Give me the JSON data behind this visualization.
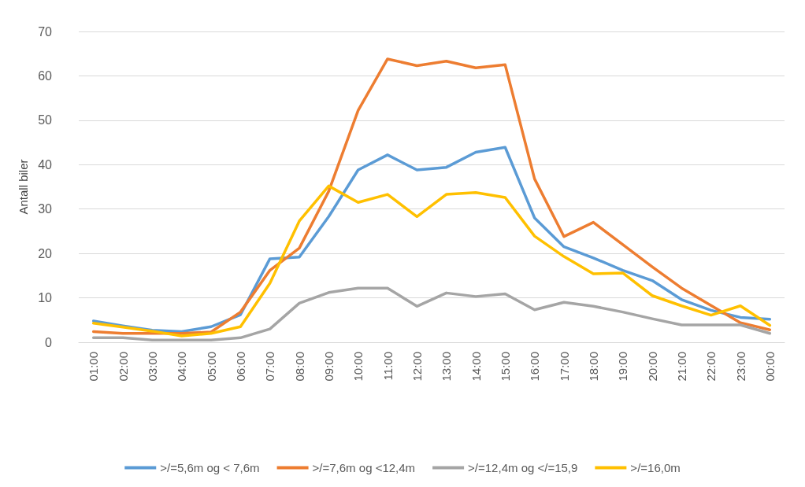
{
  "chart_data": {
    "type": "line",
    "ylabel": "Antall biler",
    "categories": [
      "01:00",
      "02:00",
      "03:00",
      "04:00",
      "05:00",
      "06:00",
      "07:00",
      "08:00",
      "09:00",
      "10:00",
      "11:00",
      "12:00",
      "13:00",
      "14:00",
      "15:00",
      "16:00",
      "17:00",
      "18:00",
      "19:00",
      "20:00",
      "21:00",
      "22:00",
      "23:00",
      "00:00"
    ],
    "series": [
      {
        "name": ">/=5,6m og < 7,6m",
        "color": "#5b9bd5",
        "values": [
          4.8,
          3.7,
          2.7,
          2.4,
          3.5,
          6.2,
          18.8,
          19.2,
          28.3,
          38.8,
          42.2,
          38.8,
          39.4,
          42.8,
          43.9,
          28,
          21.5,
          19,
          16.2,
          13.9,
          9.6,
          7.2,
          5.6,
          5.2
        ]
      },
      {
        "name": ">/=7,6m og <12,4m",
        "color": "#ed7d31",
        "values": [
          2.4,
          2,
          2,
          2,
          2.3,
          6.8,
          16.2,
          21.2,
          34,
          52.2,
          63.8,
          62.3,
          63.3,
          61.8,
          62.5,
          36.8,
          23.8,
          27,
          22,
          17,
          12.2,
          8.3,
          4.4,
          2.8
        ]
      },
      {
        "name": ">/=12,4m og </=15,9",
        "color": "#a5a5a5",
        "values": [
          1,
          1,
          0.5,
          0.5,
          0.5,
          1,
          3,
          8.8,
          11.2,
          12.2,
          12.2,
          8.1,
          11.1,
          10.3,
          10.9,
          7.3,
          9,
          8.1,
          6.8,
          5.3,
          3.9,
          3.9,
          3.9,
          2
        ]
      },
      {
        "name": ">/=16,0m",
        "color": "#ffc000",
        "values": [
          4.3,
          3.4,
          2.5,
          1.4,
          2,
          3.5,
          13.3,
          27.3,
          35.2,
          31.5,
          33.3,
          28.3,
          33.3,
          33.7,
          32.6,
          23.9,
          19.3,
          15.4,
          15.6,
          10.5,
          8.2,
          6.1,
          8.2,
          3.8
        ]
      }
    ],
    "ylim": [
      0,
      70
    ],
    "yticks": [
      0,
      10,
      20,
      30,
      40,
      50,
      60,
      70
    ],
    "grid": "y",
    "legend": "bottom",
    "marker": "none",
    "line_style": "solid"
  }
}
